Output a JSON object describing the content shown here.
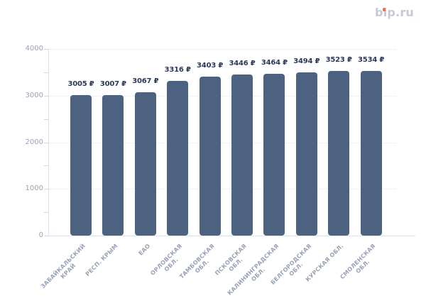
{
  "logo": {
    "text": "bip.ru",
    "text_color": "#c6c9d8",
    "dot_color": "#ef6a55"
  },
  "chart_data": {
    "type": "bar",
    "title": "",
    "xlabel": "",
    "ylabel": "",
    "categories": [
      "ЗАБАЙКАЛЬСКИЙ КРАЙ",
      "РЕСП. КРЫМ",
      "ЕАО",
      "ОРЛОВСКАЯ ОБЛ.",
      "ТАМБОВСКАЯ ОБЛ.",
      "ПСКОВСКАЯ ОБЛ.",
      "КАЛИНИНГРАДСКАЯ ОБЛ.",
      "БЕЛГОРОДСКАЯ ОБЛ.",
      "КУРСКАЯ ОБЛ.",
      "СМОЛЕНСКАЯ ОБЛ."
    ],
    "category_label_lines": [
      [
        "ЗАБАЙКАЛЬСКИЙ",
        "КРАЙ"
      ],
      [
        "РЕСП. КРЫМ"
      ],
      [
        "ЕАО"
      ],
      [
        "ОРЛОВСКАЯ",
        "ОБЛ."
      ],
      [
        "ТАМБОВСКАЯ",
        "ОБЛ."
      ],
      [
        "ПСКОВСКАЯ",
        "ОБЛ."
      ],
      [
        "КАЛИНИНГРАДСКАЯ",
        "ОБЛ."
      ],
      [
        "БЕЛГОРОДСКАЯ",
        "ОБЛ."
      ],
      [
        "КУРСКАЯ ОБЛ."
      ],
      [
        "СМОЛЕНСКАЯ",
        "ОБЛ."
      ]
    ],
    "values": [
      3005,
      3007,
      3067,
      3316,
      3403,
      3446,
      3464,
      3494,
      3523,
      3534
    ],
    "value_labels": [
      "3005 ₽",
      "3007 ₽",
      "3067 ₽",
      "3316 ₽",
      "3403 ₽",
      "3446 ₽",
      "3464 ₽",
      "3494 ₽",
      "3523 ₽",
      "3534 ₽"
    ],
    "unit": "₽",
    "ylim": [
      0,
      4000
    ],
    "y_major_ticks": [
      0,
      1000,
      2000,
      3000,
      4000
    ],
    "y_minor_tick_step": 500,
    "grid": "horizontal-dotted",
    "legend": "none",
    "colors": {
      "bar": "#4d6180",
      "value_label": "#2d3a57",
      "y_tick_label": "#9aa2b4",
      "x_tick_label": "#99a1b6",
      "grid_line": "#e4e6ed",
      "axis_line": "#dfe1e9",
      "tick_mark": "#d2d6e0",
      "background": "#ffffff"
    }
  }
}
